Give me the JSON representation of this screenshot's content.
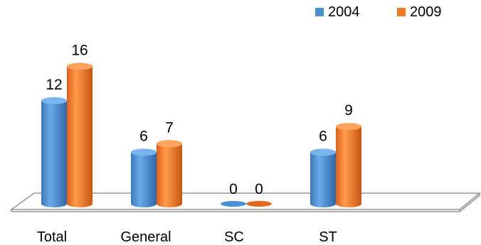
{
  "chart_data": {
    "type": "bar",
    "categories": [
      "Total",
      "General",
      "SC",
      "ST"
    ],
    "series": [
      {
        "name": "2004",
        "values": [
          12,
          6,
          0,
          6
        ],
        "color": "#4a90d4"
      },
      {
        "name": "2009",
        "values": [
          16,
          7,
          0,
          9
        ],
        "color": "#f07a24"
      }
    ],
    "legend_position": "top-right",
    "ylim": [
      0,
      16
    ],
    "grid": false,
    "style": "3d-cylinder"
  }
}
